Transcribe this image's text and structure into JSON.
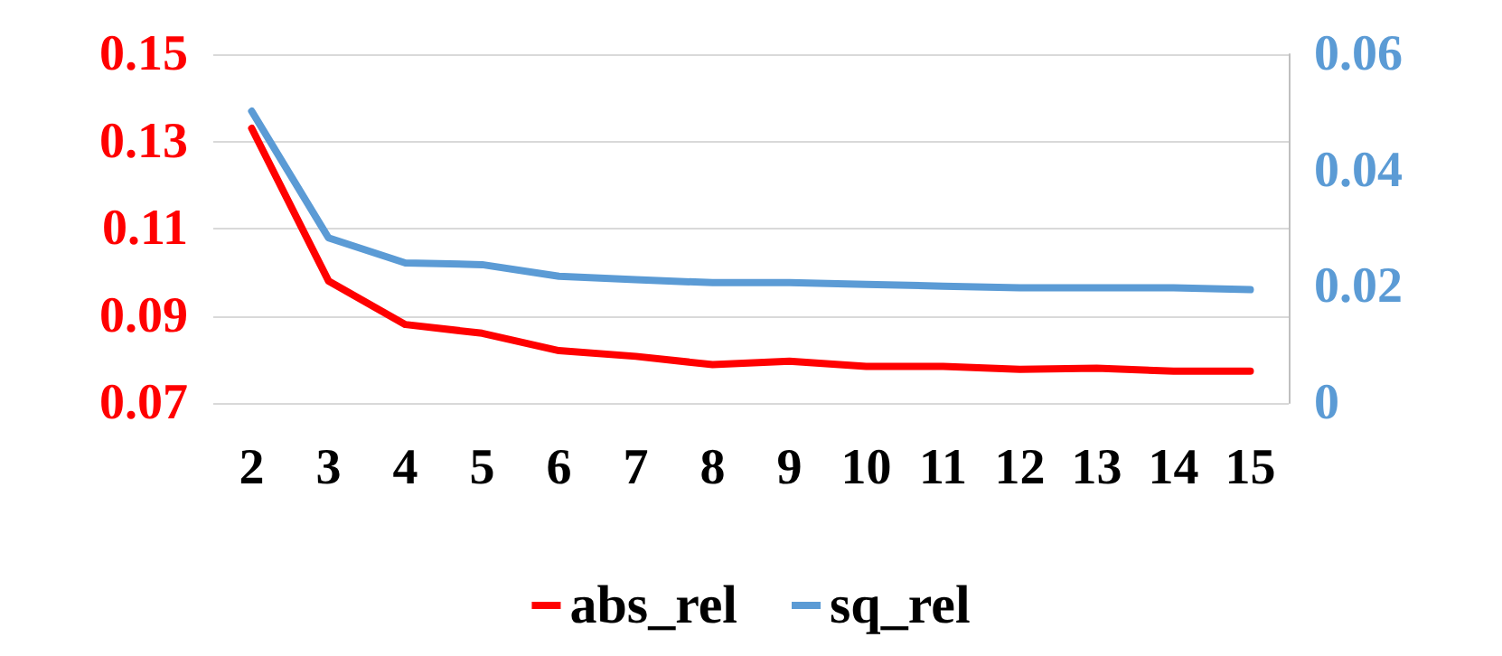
{
  "chart_data": {
    "type": "line",
    "categories": [
      "2",
      "3",
      "4",
      "5",
      "6",
      "7",
      "8",
      "9",
      "10",
      "11",
      "12",
      "13",
      "14",
      "15"
    ],
    "series": [
      {
        "name": "abs_rel",
        "color": "#ff0000",
        "values": [
          0.133,
          0.098,
          0.088,
          0.086,
          0.082,
          0.0807,
          0.0788,
          0.0796,
          0.0784,
          0.0784,
          0.0777,
          0.078,
          0.0773,
          0.0773
        ]
      },
      {
        "name": "sq_rel",
        "color": "#5b9bd5",
        "axis": "y2",
        "values": [
          0.0502,
          0.0284,
          0.0241,
          0.0238,
          0.0218,
          0.0212,
          0.0207,
          0.0207,
          0.0204,
          0.0201,
          0.0198,
          0.0198,
          0.0198,
          0.0195
        ]
      }
    ],
    "ylim": [
      0.07,
      0.15
    ],
    "yticks": [
      0.07,
      0.09,
      0.11,
      0.13,
      0.15
    ],
    "y2lim": [
      0,
      0.06
    ],
    "y2ticks": [
      0,
      0.02,
      0.04,
      0.06
    ],
    "grid": "y",
    "legend": "bottom",
    "marker": "none",
    "line_style": "solid"
  }
}
